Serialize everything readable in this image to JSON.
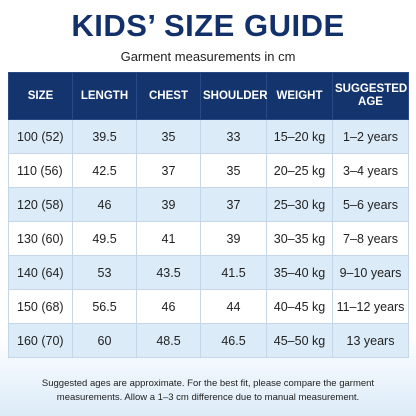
{
  "header": {
    "title": "KIDS’ SIZE GUIDE",
    "subtitle": "Garment measurements in cm"
  },
  "table": {
    "columns": [
      "SIZE",
      "LENGTH",
      "CHEST",
      "SHOULDER",
      "WEIGHT",
      "SUGGESTED AGE"
    ],
    "rows": [
      [
        "100 (52)",
        "39.5",
        "35",
        "33",
        "15–20 kg",
        "1–2 years"
      ],
      [
        "110 (56)",
        "42.5",
        "37",
        "35",
        "20–25 kg",
        "3–4 years"
      ],
      [
        "120 (58)",
        "46",
        "39",
        "37",
        "25–30 kg",
        "5–6 years"
      ],
      [
        "130 (60)",
        "49.5",
        "41",
        "39",
        "30–35 kg",
        "7–8 years"
      ],
      [
        "140 (64)",
        "53",
        "43.5",
        "41.5",
        "35–40 kg",
        "9–10 years"
      ],
      [
        "150 (68)",
        "56.5",
        "46",
        "44",
        "40–45 kg",
        "11–12 years"
      ],
      [
        "160 (70)",
        "60",
        "48.5",
        "46.5",
        "45–50 kg",
        "13 years"
      ]
    ]
  },
  "footer": {
    "note": "Suggested ages are approximate. For the best fit, please compare the garment measurements. Allow a 1–3 cm difference due to manual measurement."
  }
}
